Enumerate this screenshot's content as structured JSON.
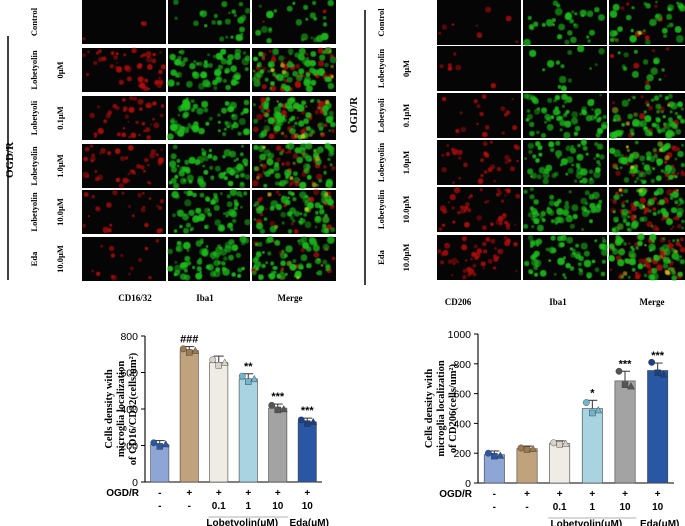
{
  "colors": {
    "red_fluor": "#b30d10",
    "green_fluor": "#1fbf1f",
    "dark": "#050505"
  },
  "panel_left": {
    "group_label": "OGD/R",
    "row_labels": [
      {
        "agent": "Control",
        "dose": ""
      },
      {
        "agent": "Lobetyolin",
        "dose": "0μM"
      },
      {
        "agent": "Lobetyoli",
        "dose": "0.1μM"
      },
      {
        "agent": "Lobetyolin",
        "dose": "1.0μM"
      },
      {
        "agent": "Lobetyolin",
        "dose": "10.0μM"
      },
      {
        "agent": "Eda",
        "dose": "10.0μM"
      }
    ],
    "column_labels": [
      "CD16/32",
      "Iba1",
      "Merge"
    ],
    "cell_levels": {
      "red": [
        0.05,
        0.85,
        0.75,
        0.7,
        0.45,
        0.25
      ],
      "green": [
        0.35,
        0.9,
        0.95,
        0.9,
        0.85,
        0.95
      ]
    }
  },
  "panel_right": {
    "group_label": "OGD/R",
    "row_labels": [
      {
        "agent": "Control",
        "dose": ""
      },
      {
        "agent": "Lobetyolin",
        "dose": "0μM"
      },
      {
        "agent": "Lobetyoli",
        "dose": "0.1μM"
      },
      {
        "agent": "Lobetyolin",
        "dose": "1.0μM"
      },
      {
        "agent": "Lobetyolin",
        "dose": "10.0μM"
      },
      {
        "agent": "Eda",
        "dose": "10.0μM"
      }
    ],
    "column_labels": [
      "CD206",
      "Iba1",
      "Merge"
    ],
    "cell_levels": {
      "red": [
        0.15,
        0.1,
        0.3,
        0.55,
        0.8,
        0.85
      ],
      "green": [
        0.45,
        0.2,
        0.9,
        0.85,
        0.8,
        0.9
      ]
    }
  },
  "chart_data": [
    {
      "type": "bar",
      "ylabel_lines": [
        "Cells density with",
        "microglia localization",
        "of CD16/CD32(cells/um²)"
      ],
      "ylim": [
        0,
        800
      ],
      "yticks": [
        0,
        200,
        400,
        600,
        800
      ],
      "values": [
        205,
        720,
        655,
        565,
        405,
        330
      ],
      "errors": [
        22,
        22,
        35,
        28,
        22,
        20
      ],
      "points": [
        [
          215,
          195,
          208
        ],
        [
          730,
          710,
          720
        ],
        [
          670,
          640,
          655
        ],
        [
          580,
          550,
          565
        ],
        [
          420,
          395,
          400
        ],
        [
          340,
          320,
          330
        ]
      ],
      "colors": [
        "#8ea6d6",
        "#c0a27c",
        "#efebe5",
        "#a9d3e0",
        "#a3a3a3",
        "#2a57a3"
      ],
      "sig": [
        "",
        "###",
        "",
        "**",
        "***",
        "***"
      ],
      "condition_rows": [
        {
          "label": "OGD/R",
          "values": [
            "-",
            "+",
            "+",
            "+",
            "+",
            "+"
          ]
        },
        {
          "label": "",
          "values": [
            "-",
            "-",
            "0.1",
            "1",
            "10",
            "10"
          ]
        }
      ],
      "group_labels": [
        "Lobetyolin(μM)",
        "Eda(μM)"
      ]
    },
    {
      "type": "bar",
      "ylabel_lines": [
        "Cells density with",
        "microglia localization",
        "of CD206(cells/um²)"
      ],
      "ylim": [
        0,
        1000
      ],
      "yticks": [
        0,
        200,
        400,
        600,
        800,
        1000
      ],
      "values": [
        190,
        230,
        265,
        500,
        685,
        755
      ],
      "errors": [
        25,
        18,
        18,
        55,
        65,
        50
      ],
      "points": [
        [
          200,
          180,
          185
        ],
        [
          235,
          225,
          230
        ],
        [
          270,
          260,
          265
        ],
        [
          540,
          470,
          490
        ],
        [
          750,
          660,
          650
        ],
        [
          810,
          740,
          730
        ]
      ],
      "colors": [
        "#8ea6d6",
        "#c0a27c",
        "#efebe5",
        "#a9d3e0",
        "#a3a3a3",
        "#2a57a3"
      ],
      "sig": [
        "",
        "",
        "",
        "*",
        "***",
        "***"
      ],
      "condition_rows": [
        {
          "label": "OGD/R",
          "values": [
            "-",
            "+",
            "+",
            "+",
            "+",
            "+"
          ]
        },
        {
          "label": "",
          "values": [
            "-",
            "-",
            "0.1",
            "1",
            "10",
            "10"
          ]
        }
      ],
      "group_labels": [
        "Lobetyolin(μM)",
        "Eda(μM)"
      ]
    }
  ]
}
